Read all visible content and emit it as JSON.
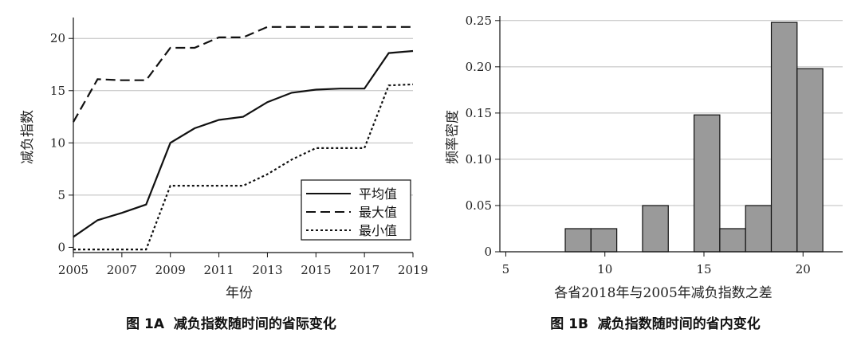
{
  "colors": {
    "bar_fill": "#9a9a9a",
    "grid": "#bdbdbd",
    "line": "#111111"
  },
  "panelA": {
    "caption": "图 1A  减负指数随时间的省际变化",
    "chart_data": {
      "type": "line",
      "xlabel": "年份",
      "ylabel": "减负指数",
      "x": [
        2005,
        2006,
        2007,
        2008,
        2009,
        2010,
        2011,
        2012,
        2013,
        2014,
        2015,
        2016,
        2017,
        2018,
        2019
      ],
      "xticks": [
        "2005",
        "2007",
        "2009",
        "2011",
        "2013",
        "2015",
        "2017",
        "2019"
      ],
      "yticks": [
        "0",
        "5",
        "10",
        "15",
        "20"
      ],
      "xlim": [
        2005,
        2019
      ],
      "ylim": [
        -0.5,
        22
      ],
      "grid": "horizontal",
      "legend_position": "bottom-right",
      "series": [
        {
          "name": "平均值",
          "style": "solid",
          "values": [
            1.0,
            2.6,
            3.3,
            4.1,
            10.0,
            11.4,
            12.2,
            12.5,
            13.9,
            14.8,
            15.1,
            15.2,
            15.2,
            18.6,
            18.8
          ]
        },
        {
          "name": "最大值",
          "style": "dashed",
          "values": [
            12.0,
            16.1,
            16.0,
            16.0,
            19.1,
            19.1,
            20.1,
            20.1,
            21.1,
            21.1,
            21.1,
            21.1,
            21.1,
            21.1,
            21.1
          ]
        },
        {
          "name": "最小值",
          "style": "dotted",
          "values": [
            -0.2,
            -0.2,
            -0.2,
            -0.2,
            5.9,
            5.9,
            5.9,
            5.9,
            7.0,
            8.4,
            9.5,
            9.5,
            9.5,
            15.5,
            15.6
          ]
        }
      ]
    }
  },
  "panelB": {
    "caption": "图 1B  减负指数随时间的省内变化",
    "chart_data": {
      "type": "bar",
      "xlabel": "各省2018年与2005年减负指数之差",
      "ylabel": "频率密度",
      "xticks": [
        "5",
        "10",
        "15",
        "20"
      ],
      "yticks": [
        "0",
        "0.05",
        "0.10",
        "0.15",
        "0.20",
        "0.25"
      ],
      "xlim": [
        4.7,
        22.0
      ],
      "ylim": [
        0,
        0.255
      ],
      "grid": "horizontal",
      "bins": [
        {
          "x0": 8.0,
          "x1": 9.3,
          "value": 0.025
        },
        {
          "x0": 9.3,
          "x1": 10.6,
          "value": 0.025
        },
        {
          "x0": 11.9,
          "x1": 13.2,
          "value": 0.05
        },
        {
          "x0": 14.5,
          "x1": 15.8,
          "value": 0.148
        },
        {
          "x0": 15.8,
          "x1": 17.1,
          "value": 0.025
        },
        {
          "x0": 17.1,
          "x1": 18.4,
          "value": 0.05
        },
        {
          "x0": 18.4,
          "x1": 19.7,
          "value": 0.248
        },
        {
          "x0": 19.7,
          "x1": 21.0,
          "value": 0.198
        }
      ]
    }
  }
}
